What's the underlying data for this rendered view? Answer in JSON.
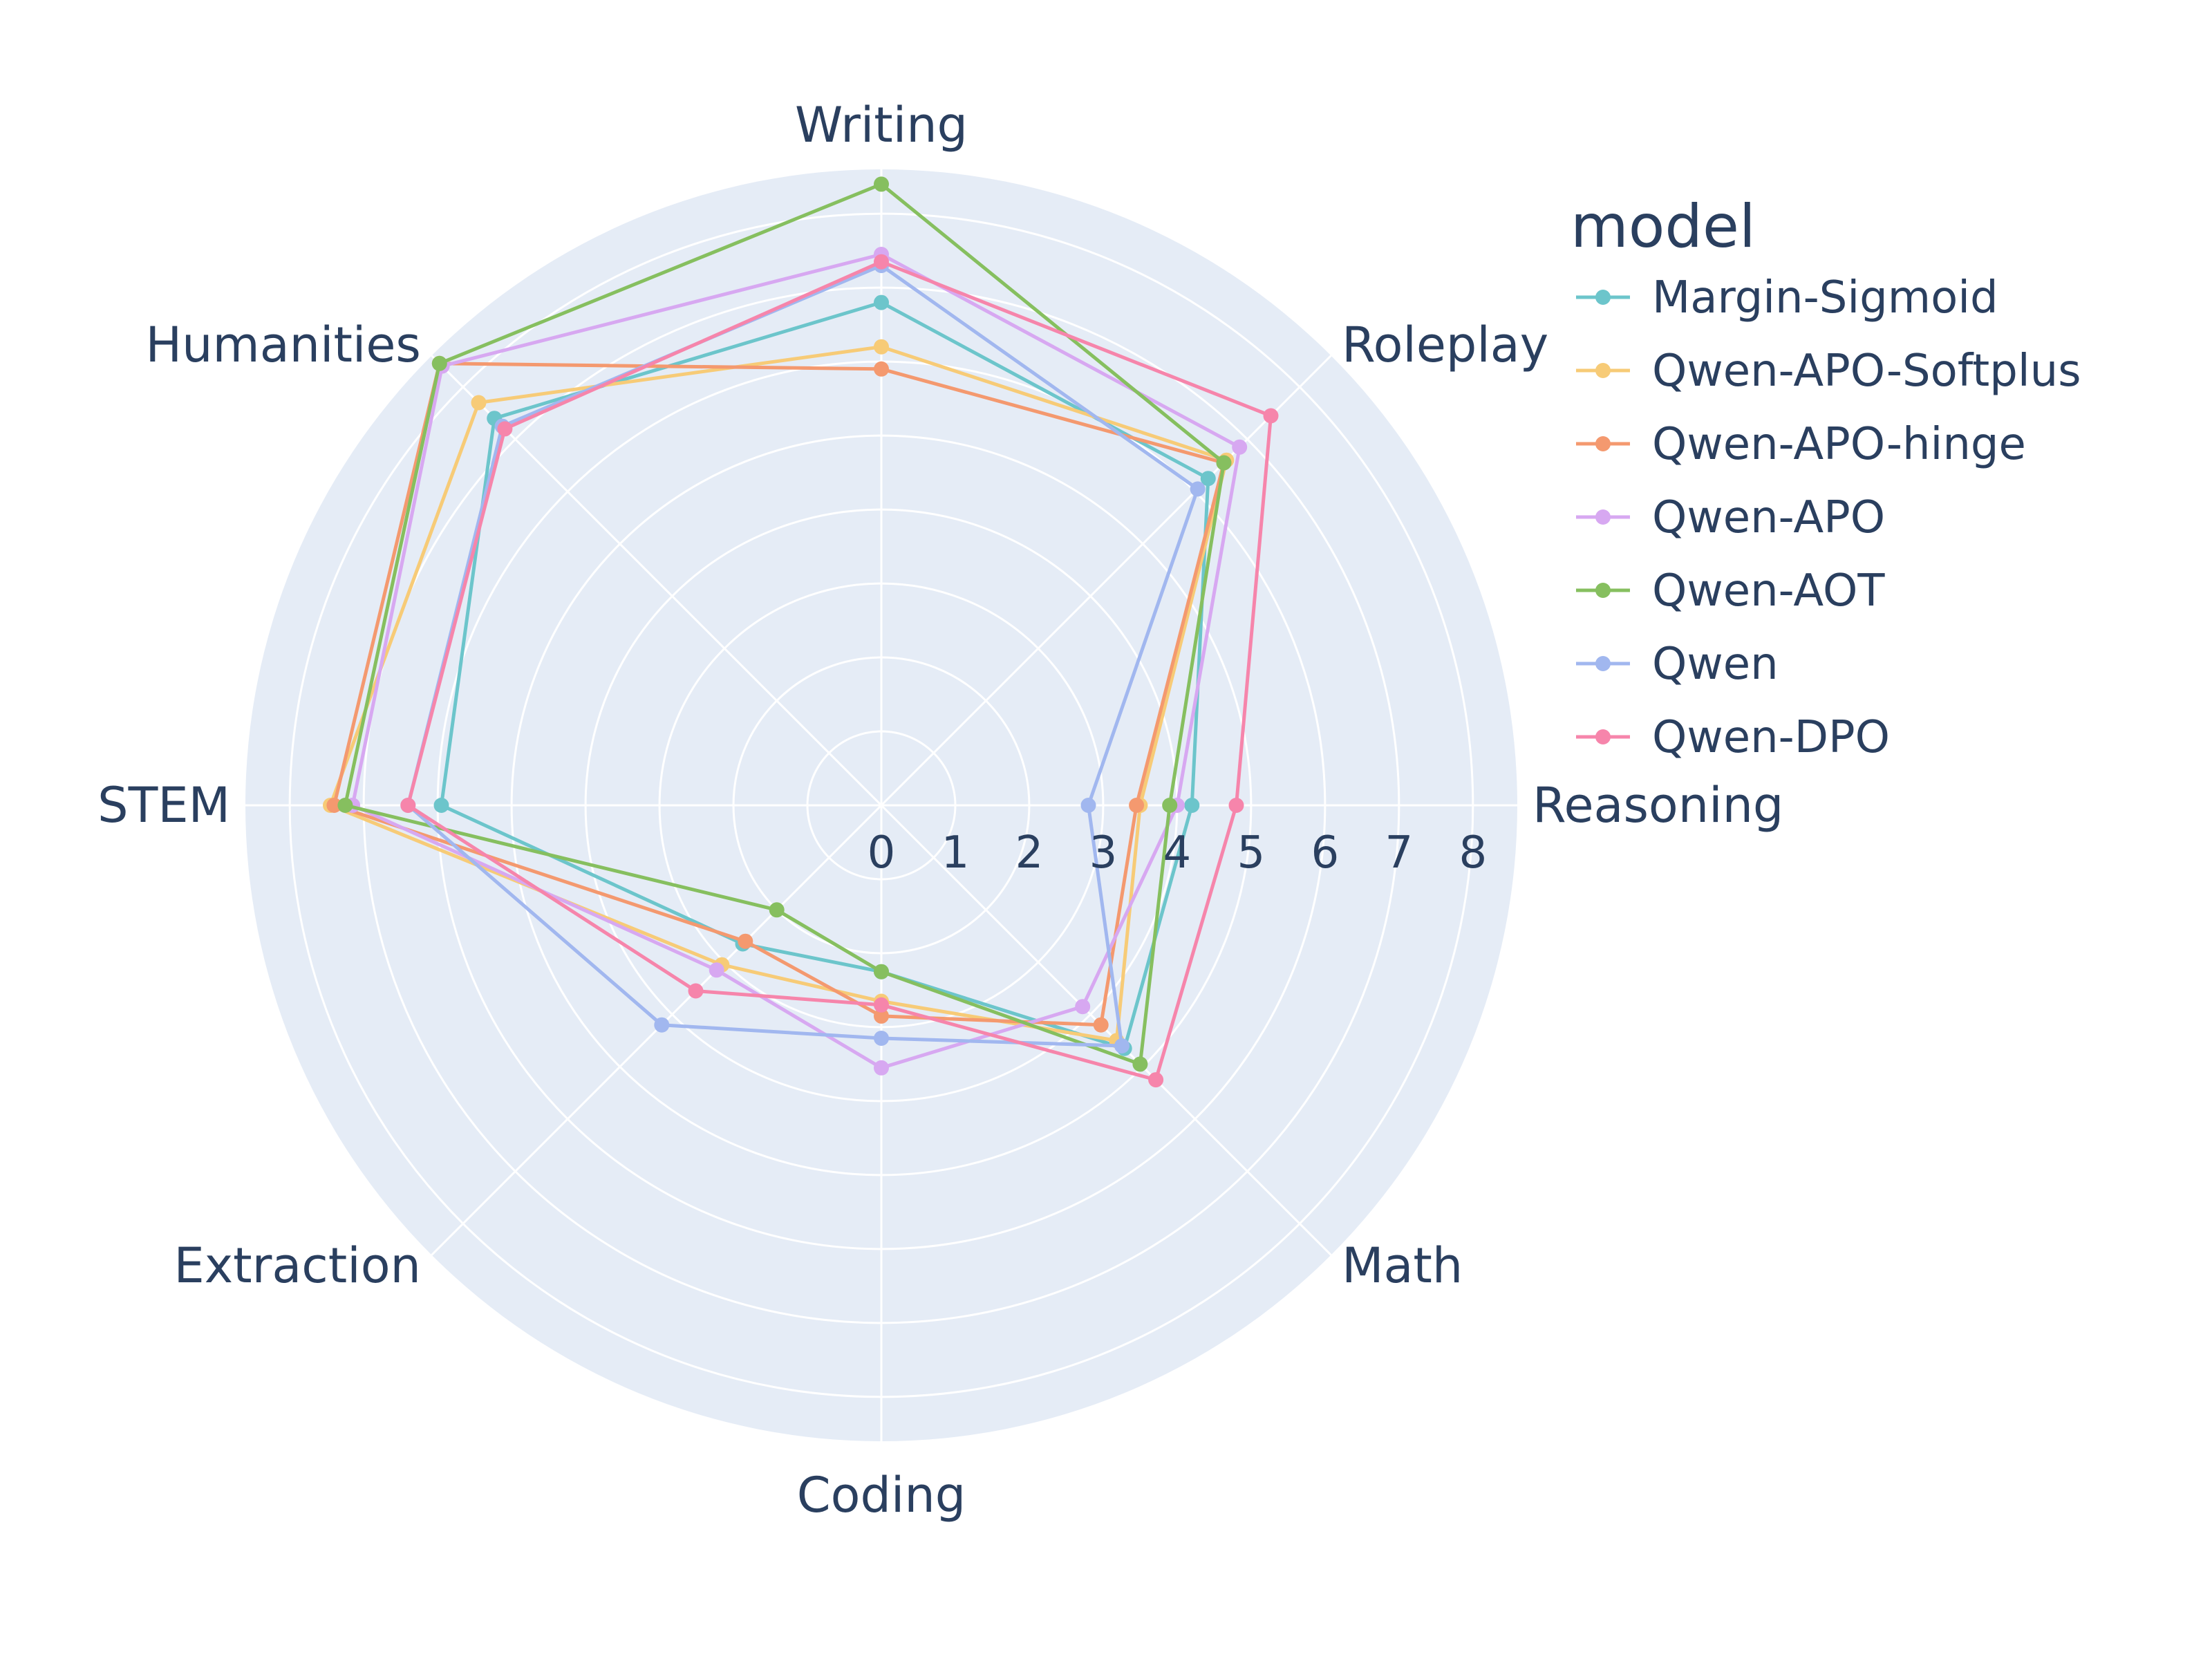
{
  "chart_data": {
    "type": "radar",
    "categories": [
      "Writing",
      "Roleplay",
      "Reasoning",
      "Math",
      "Coding",
      "Extraction",
      "STEM",
      "Humanities"
    ],
    "radial_ticks": [
      "0",
      "1",
      "2",
      "3",
      "4",
      "5",
      "6",
      "7",
      "8"
    ],
    "radial_range": [
      0,
      8.6
    ],
    "grid": true,
    "legend": {
      "title": "model",
      "placement": "right"
    },
    "series": [
      {
        "name": "Margin-Sigmoid",
        "color": "#6cc5cb",
        "values": [
          6.8,
          6.25,
          4.2,
          4.65,
          2.25,
          2.65,
          5.95,
          7.4
        ]
      },
      {
        "name": "Qwen-APO-Softplus",
        "color": "#f7cb77",
        "values": [
          6.2,
          6.6,
          3.5,
          4.5,
          2.65,
          3.05,
          7.45,
          7.7
        ]
      },
      {
        "name": "Qwen-APO-hinge",
        "color": "#f4996f",
        "values": [
          5.9,
          6.55,
          3.45,
          4.2,
          2.85,
          2.6,
          7.4,
          8.45
        ]
      },
      {
        "name": "Qwen-APO",
        "color": "#d7a8f1",
        "values": [
          7.45,
          6.85,
          4.0,
          3.85,
          3.55,
          3.15,
          7.15,
          8.4
        ]
      },
      {
        "name": "Qwen-AOT",
        "color": "#86bf5f",
        "values": [
          8.4,
          6.55,
          3.9,
          4.95,
          2.25,
          2.0,
          7.25,
          8.45
        ]
      },
      {
        "name": "Qwen",
        "color": "#a1b7ef",
        "values": [
          7.3,
          6.05,
          2.8,
          4.6,
          3.15,
          4.2,
          6.4,
          7.25
        ]
      },
      {
        "name": "Qwen-DPO",
        "color": "#f685ab",
        "values": [
          7.35,
          7.45,
          4.8,
          5.25,
          2.7,
          3.55,
          6.4,
          7.2
        ]
      }
    ]
  }
}
